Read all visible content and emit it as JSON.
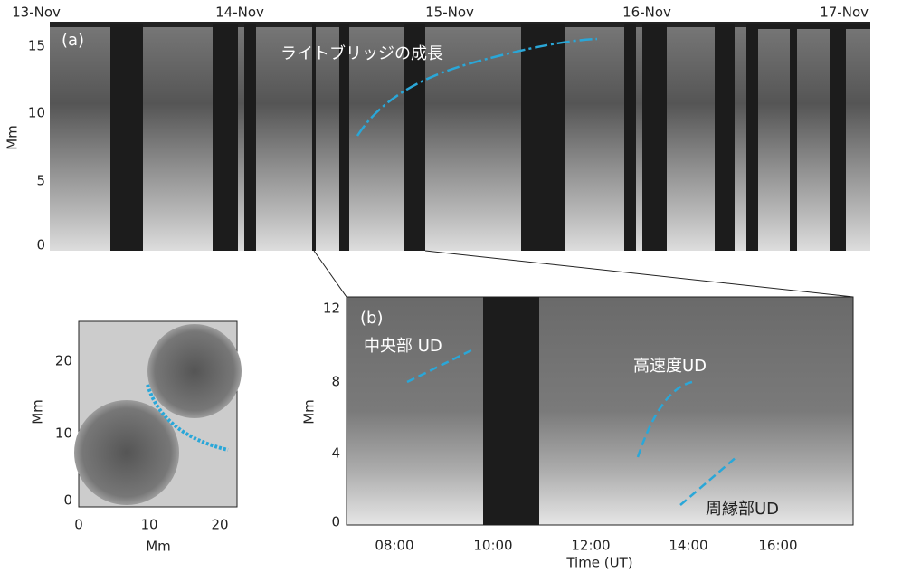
{
  "panel_a": {
    "label": "(a)",
    "y_axis_label": "Mm",
    "annotation": "ライトブリッジの成長",
    "date_labels": [
      "13-Nov",
      "14-Nov",
      "15-Nov",
      "16-Nov",
      "17-Nov"
    ],
    "y_tick_labels": [
      "15",
      "10",
      "5",
      "0"
    ]
  },
  "inset": {
    "y_axis_label": "Mm",
    "x_axis_label": "Mm",
    "y_tick_labels": [
      "20",
      "10",
      "0"
    ],
    "x_tick_labels": [
      "0",
      "10",
      "20"
    ]
  },
  "panel_b": {
    "label": "(b)",
    "y_axis_label": "Mm",
    "x_axis_label": "Time (UT)",
    "y_tick_labels": [
      "12",
      "8",
      "4",
      "0"
    ],
    "x_tick_labels": [
      "08:00",
      "10:00",
      "12:00",
      "14:00",
      "16:00"
    ],
    "annotations": [
      "中央部 UD",
      "高速度UD",
      "周縁部UD"
    ]
  }
}
